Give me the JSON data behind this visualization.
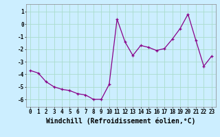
{
  "x": [
    0,
    1,
    2,
    3,
    4,
    5,
    6,
    7,
    8,
    9,
    10,
    11,
    12,
    13,
    14,
    15,
    16,
    17,
    18,
    19,
    20,
    21,
    22,
    23
  ],
  "y": [
    -3.7,
    -3.9,
    -4.6,
    -5.0,
    -5.2,
    -5.3,
    -5.55,
    -5.65,
    -6.0,
    -6.0,
    -4.8,
    0.4,
    -1.4,
    -2.5,
    -1.7,
    -1.85,
    -2.1,
    -1.95,
    -1.2,
    -0.35,
    0.8,
    -1.3,
    -3.35,
    -2.55
  ],
  "line_color": "#880088",
  "marker": "+",
  "markersize": 3,
  "linewidth": 0.9,
  "bg_color": "#cceeff",
  "grid_color": "#aaddcc",
  "xlabel": "Windchill (Refroidissement éolien,°C)",
  "xlim": [
    -0.5,
    23.5
  ],
  "ylim": [
    -6.6,
    1.6
  ],
  "yticks": [
    -6,
    -5,
    -4,
    -3,
    -2,
    -1,
    0,
    1
  ],
  "xtick_labels": [
    "0",
    "1",
    "2",
    "3",
    "4",
    "5",
    "6",
    "7",
    "8",
    "9",
    "10",
    "11",
    "12",
    "13",
    "14",
    "15",
    "16",
    "17",
    "18",
    "19",
    "20",
    "21",
    "22",
    "23"
  ],
  "tick_fontsize": 5.5,
  "xlabel_fontsize": 7.0,
  "ylabel_fontsize": 6
}
